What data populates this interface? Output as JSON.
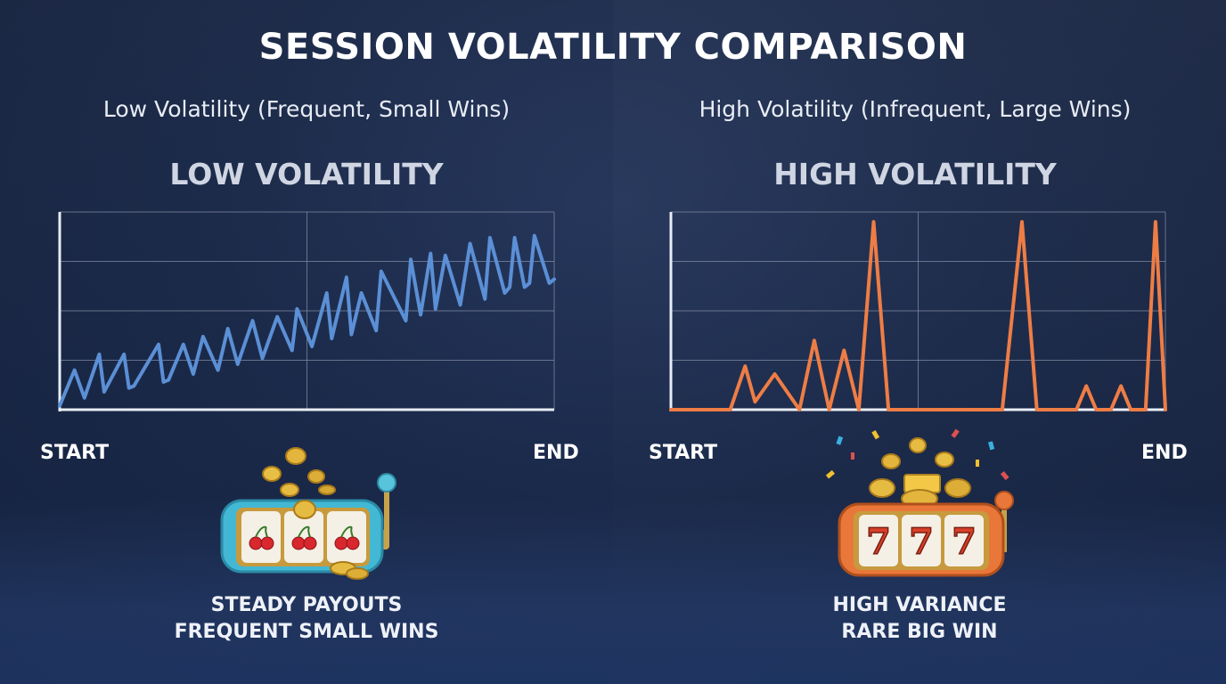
{
  "title": "SESSION VOLATILITY COMPARISON",
  "colors": {
    "low_line": "#5b8fd6",
    "high_line": "#ee7d45",
    "grid": "#8791a8"
  },
  "chart_data": [
    {
      "type": "line",
      "subtitle": "Low Volatility (Frequent, Small Wins)",
      "title": "LOW VOLATILITY",
      "x_start_label": "START",
      "x_end_label": "END",
      "xlim": [
        0,
        100
      ],
      "ylim": [
        0,
        100
      ],
      "grid": true,
      "series": [
        {
          "x": [
            0,
            3,
            5,
            8,
            9,
            13,
            14,
            15,
            20,
            21,
            22,
            25,
            27,
            29,
            32,
            34,
            36,
            39,
            41,
            44,
            47,
            48,
            51,
            54,
            55,
            58,
            59,
            61,
            64,
            65,
            70,
            71,
            73,
            75,
            76,
            78,
            81,
            83,
            86,
            87,
            90,
            91,
            92,
            94,
            95,
            96,
            99,
            100
          ],
          "y": [
            2,
            20,
            6,
            28,
            9,
            28,
            11,
            12,
            33,
            14,
            15,
            33,
            18,
            37,
            20,
            41,
            23,
            45,
            26,
            47,
            30,
            51,
            32,
            59,
            36,
            67,
            38,
            59,
            40,
            70,
            45,
            76,
            48,
            79,
            51,
            78,
            53,
            84,
            56,
            87,
            59,
            62,
            87,
            62,
            64,
            88,
            64,
            66
          ]
        }
      ]
    },
    {
      "type": "line",
      "subtitle": "High Volatility (Infrequent, Large Wins)",
      "title": "HIGH VOLATILITY",
      "x_start_label": "START",
      "x_end_label": "END",
      "xlim": [
        0,
        100
      ],
      "ylim": [
        0,
        100
      ],
      "grid": true,
      "series": [
        {
          "x": [
            0,
            9,
            12,
            15,
            17,
            21,
            26,
            29,
            32,
            35,
            38,
            41,
            44,
            67,
            71,
            74,
            82,
            84,
            86,
            89,
            91,
            93,
            96,
            98,
            100
          ],
          "y": [
            0,
            0,
            0,
            22,
            4,
            18,
            0,
            35,
            0,
            30,
            0,
            95,
            0,
            0,
            95,
            0,
            0,
            12,
            0,
            0,
            12,
            0,
            0,
            95,
            0
          ]
        }
      ]
    }
  ],
  "slots": [
    {
      "symbol_icon": "cherry-icon",
      "color": "#43b8d4",
      "caption_line1": "STEADY PAYOUTS",
      "caption_line2": "FREQUENT SMALL WINS"
    },
    {
      "symbol": "7",
      "color": "#e9773a",
      "caption_line1": "HIGH VARIANCE",
      "caption_line2": "RARE BIG WIN"
    }
  ]
}
